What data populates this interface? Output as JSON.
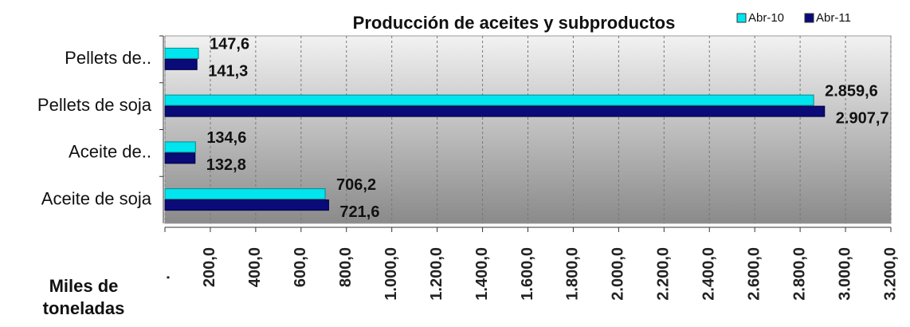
{
  "chart_data": {
    "type": "bar",
    "orientation": "horizontal",
    "title": "Producción de aceites y subproductos",
    "x_label": "Miles de toneladas",
    "categories": [
      "Pellets de..",
      "Pellets de soja",
      "Aceite de..",
      "Aceite de soja"
    ],
    "series": [
      {
        "name": "Abr-10",
        "color": "#00e5ee",
        "values": [
          147.6,
          2859.6,
          134.6,
          706.2
        ],
        "value_labels": [
          "147,6",
          "2.859,6",
          "134,6",
          "706,2"
        ]
      },
      {
        "name": "Abr-11",
        "color": "#0a0a78",
        "values": [
          141.3,
          2907.7,
          132.8,
          721.6
        ],
        "value_labels": [
          "141,3",
          "2.907,7",
          "132,8",
          "721,6"
        ]
      }
    ],
    "xlim": [
      0,
      3200
    ],
    "xticks": [
      {
        "value": 0,
        "label": "."
      },
      {
        "value": 200,
        "label": "200,0"
      },
      {
        "value": 400,
        "label": "400,0"
      },
      {
        "value": 600,
        "label": "600,0"
      },
      {
        "value": 800,
        "label": "800,0"
      },
      {
        "value": 1000,
        "label": "1.000,0"
      },
      {
        "value": 1200,
        "label": "1.200,0"
      },
      {
        "value": 1400,
        "label": "1.400,0"
      },
      {
        "value": 1600,
        "label": "1.600,0"
      },
      {
        "value": 1800,
        "label": "1.800,0"
      },
      {
        "value": 2000,
        "label": "2.000,0"
      },
      {
        "value": 2200,
        "label": "2.200,0"
      },
      {
        "value": 2400,
        "label": "2.400,0"
      },
      {
        "value": 2600,
        "label": "2.600,0"
      },
      {
        "value": 2800,
        "label": "2.800,0"
      },
      {
        "value": 3000,
        "label": "3.000,0"
      },
      {
        "value": 3200,
        "label": "3.200,0"
      }
    ],
    "grid": true,
    "legend": "top-right"
  }
}
